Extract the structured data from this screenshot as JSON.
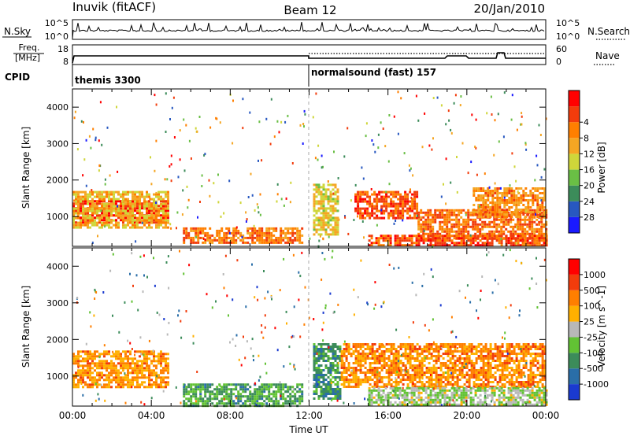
{
  "header": {
    "station": "Inuvik (fitACF)",
    "beam": "Beam 12",
    "date": "20/Jan/2010"
  },
  "top_panels": {
    "nsky_label": "N.Sky",
    "nsky_ticks": [
      "10^5",
      "10^0"
    ],
    "nsearch_label": "N.Search",
    "nsearch_ticks": [
      "10^5",
      "10^0"
    ],
    "freq_label_line1": "Freq.",
    "freq_label_line2": "[MHz]",
    "freq_ticks": [
      "18",
      "8"
    ],
    "nave_label": "Nave",
    "nave_ticks": [
      "60",
      "0"
    ],
    "cpid_label": "CPID",
    "cpid_modes": [
      {
        "name": "themis 3300",
        "start_hour": 0,
        "end_hour": 12
      },
      {
        "name": "normalsound (fast) 157",
        "start_hour": 12,
        "end_hour": 24
      }
    ]
  },
  "chart_data": [
    {
      "type": "heatmap",
      "title": "",
      "quantity": "Power",
      "ylabel": "Slant Range [km]",
      "xlabel": "",
      "xlim": [
        0,
        24
      ],
      "ylim": [
        180,
        4500
      ],
      "x_ticks": [
        0,
        4,
        8,
        12,
        16,
        20,
        24
      ],
      "y_ticks": [
        "1000",
        "2000",
        "3000",
        "4000"
      ],
      "colorbar": {
        "label": "Power [dB]",
        "tick_labels": [
          "4",
          "8",
          "12",
          "16",
          "20",
          "24",
          "28"
        ],
        "colors": [
          "#1a1aff",
          "#2858c0",
          "#3c8c5a",
          "#6abf45",
          "#cfd63a",
          "#f5a623",
          "#ff7f00",
          "#f23c0c",
          "#ff0000"
        ]
      },
      "regions": [
        {
          "t0": 0.0,
          "t1": 4.9,
          "r0": 850,
          "r1": 1450,
          "level": 0.95
        },
        {
          "t0": 0.0,
          "t1": 4.9,
          "r0": 700,
          "r1": 1700,
          "level": 0.6
        },
        {
          "t0": 5.6,
          "t1": 11.6,
          "r0": 250,
          "r1": 700,
          "level": 0.75
        },
        {
          "t0": 12.2,
          "t1": 13.4,
          "r0": 500,
          "r1": 1900,
          "level": 0.55
        },
        {
          "t0": 14.3,
          "t1": 17.5,
          "r0": 950,
          "r1": 1700,
          "level": 0.85
        },
        {
          "t0": 17.5,
          "t1": 24.0,
          "r0": 400,
          "r1": 1200,
          "level": 0.8
        },
        {
          "t0": 20.3,
          "t1": 24.0,
          "r0": 1000,
          "r1": 1800,
          "level": 0.7
        },
        {
          "t0": 15.0,
          "t1": 24.0,
          "r0": 200,
          "r1": 500,
          "level": 0.85
        }
      ]
    },
    {
      "type": "heatmap",
      "title": "",
      "quantity": "Velocity",
      "ylabel": "Slant Range [km]",
      "xlabel": "Time UT",
      "xlim": [
        0,
        24
      ],
      "ylim": [
        180,
        4500
      ],
      "x_ticks": [
        0,
        4,
        8,
        12,
        16,
        20,
        24
      ],
      "x_tick_labels": [
        "00:00",
        "04:00",
        "08:00",
        "12:00",
        "16:00",
        "20:00",
        "00:00"
      ],
      "y_ticks": [
        "1000",
        "2000",
        "3000",
        "4000"
      ],
      "colorbar": {
        "label": "Velocity [m s^-1]",
        "tick_labels": [
          "1000",
          "500",
          "100",
          "25",
          "-25",
          "-100",
          "-500",
          "-1000"
        ],
        "colors": [
          "#1a3ad0",
          "#2a6ea8",
          "#3c8c5a",
          "#62c234",
          "#b8b8b8",
          "#ffb000",
          "#ff7f00",
          "#f23c0c",
          "#ff0000"
        ]
      },
      "regions": [
        {
          "t0": 0.0,
          "t1": 4.9,
          "r0": 700,
          "r1": 1700,
          "level": 0.7
        },
        {
          "t0": 5.6,
          "t1": 11.6,
          "r0": 200,
          "r1": 800,
          "level": 0.3
        },
        {
          "t0": 12.2,
          "t1": 13.6,
          "r0": 400,
          "r1": 1900,
          "level": 0.25
        },
        {
          "t0": 13.6,
          "t1": 24.0,
          "r0": 700,
          "r1": 1900,
          "level": 0.72
        },
        {
          "t0": 15.0,
          "t1": 24.0,
          "r0": 200,
          "r1": 700,
          "level": 0.45
        }
      ]
    }
  ]
}
